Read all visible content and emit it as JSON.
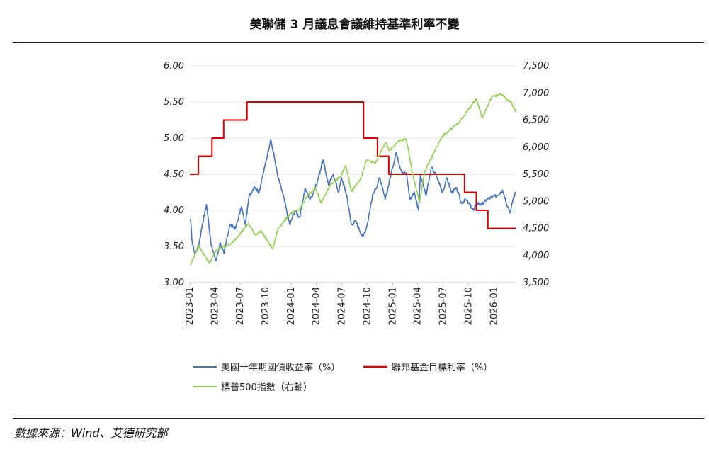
{
  "title": "美聯儲 3 月議息會議維持基準利率不變",
  "source": "數據來源：Wind、艾德研究部",
  "chart_data": {
    "type": "line",
    "xlabel": "",
    "ylabel": "",
    "x_ticks": [
      "2023-01",
      "2023-04",
      "2023-07",
      "2023-10",
      "2024-01",
      "2024-04",
      "2024-07",
      "2024-10",
      "2025-01",
      "2025-04",
      "2025-07",
      "2025-10",
      "2026-01"
    ],
    "x_range": [
      "2023-01-01",
      "2026-03-20"
    ],
    "left_axis": {
      "min": 3.0,
      "max": 6.0,
      "ticks": [
        "3.00",
        "3.50",
        "4.00",
        "4.50",
        "5.00",
        "5.50",
        "6.00"
      ]
    },
    "right_axis": {
      "min": 3500,
      "max": 7500,
      "ticks": [
        "3,500",
        "4,000",
        "4,500",
        "5,000",
        "5,500",
        "6,000",
        "6,500",
        "7,000",
        "7,500"
      ]
    },
    "grid": "horizontal",
    "legend_position": "bottom",
    "series": [
      {
        "name": "美國十年期國債收益率（%）",
        "axis": "left",
        "color": "#4472C4",
        "points": [
          [
            "2023-01-03",
            3.88
          ],
          [
            "2023-01-10",
            3.55
          ],
          [
            "2023-01-19",
            3.4
          ],
          [
            "2023-02-01",
            3.5
          ],
          [
            "2023-02-15",
            3.8
          ],
          [
            "2023-03-02",
            4.08
          ],
          [
            "2023-03-20",
            3.5
          ],
          [
            "2023-04-06",
            3.3
          ],
          [
            "2023-04-20",
            3.55
          ],
          [
            "2023-05-04",
            3.4
          ],
          [
            "2023-05-25",
            3.8
          ],
          [
            "2023-06-15",
            3.75
          ],
          [
            "2023-07-06",
            4.05
          ],
          [
            "2023-07-20",
            3.8
          ],
          [
            "2023-08-03",
            4.2
          ],
          [
            "2023-08-21",
            4.33
          ],
          [
            "2023-09-07",
            4.25
          ],
          [
            "2023-09-28",
            4.6
          ],
          [
            "2023-10-19",
            4.98
          ],
          [
            "2023-11-01",
            4.75
          ],
          [
            "2023-11-15",
            4.45
          ],
          [
            "2023-12-01",
            4.25
          ],
          [
            "2023-12-27",
            3.8
          ],
          [
            "2024-01-15",
            4.0
          ],
          [
            "2024-02-01",
            3.9
          ],
          [
            "2024-02-20",
            4.3
          ],
          [
            "2024-03-10",
            4.15
          ],
          [
            "2024-04-01",
            4.35
          ],
          [
            "2024-04-25",
            4.7
          ],
          [
            "2024-05-15",
            4.35
          ],
          [
            "2024-06-01",
            4.5
          ],
          [
            "2024-06-20",
            4.25
          ],
          [
            "2024-07-01",
            4.45
          ],
          [
            "2024-07-20",
            4.2
          ],
          [
            "2024-08-05",
            3.8
          ],
          [
            "2024-08-20",
            3.85
          ],
          [
            "2024-09-16",
            3.63
          ],
          [
            "2024-10-01",
            3.8
          ],
          [
            "2024-10-20",
            4.2
          ],
          [
            "2024-11-01",
            4.3
          ],
          [
            "2024-11-15",
            4.45
          ],
          [
            "2024-12-05",
            4.15
          ],
          [
            "2025-01-13",
            4.8
          ],
          [
            "2025-02-01",
            4.55
          ],
          [
            "2025-02-20",
            4.5
          ],
          [
            "2025-03-04",
            4.15
          ],
          [
            "2025-03-20",
            4.25
          ],
          [
            "2025-04-04",
            4.0
          ],
          [
            "2025-04-11",
            4.5
          ],
          [
            "2025-05-01",
            4.2
          ],
          [
            "2025-05-21",
            4.6
          ],
          [
            "2025-06-10",
            4.45
          ],
          [
            "2025-06-30",
            4.25
          ],
          [
            "2025-07-15",
            4.45
          ],
          [
            "2025-08-01",
            4.25
          ],
          [
            "2025-08-20",
            4.3
          ],
          [
            "2025-09-05",
            4.1
          ],
          [
            "2025-09-20",
            4.15
          ],
          [
            "2025-10-01",
            4.1
          ],
          [
            "2025-10-20",
            4.0
          ],
          [
            "2025-11-01",
            4.1
          ],
          [
            "2025-11-20",
            4.08
          ],
          [
            "2025-12-05",
            4.15
          ],
          [
            "2025-12-25",
            4.18
          ],
          [
            "2026-01-10",
            4.2
          ],
          [
            "2026-01-25",
            4.25
          ],
          [
            "2026-02-01",
            4.28
          ],
          [
            "2026-02-20",
            4.05
          ],
          [
            "2026-03-01",
            3.97
          ],
          [
            "2026-03-10",
            4.15
          ],
          [
            "2026-03-20",
            4.25
          ]
        ]
      },
      {
        "name": "聯邦基金目標利率（%）",
        "axis": "left",
        "color": "#E00000",
        "step": true,
        "points": [
          [
            "2023-01-01",
            4.5
          ],
          [
            "2023-02-01",
            4.75
          ],
          [
            "2023-03-22",
            5.0
          ],
          [
            "2023-05-03",
            5.25
          ],
          [
            "2023-07-26",
            5.5
          ],
          [
            "2024-09-18",
            5.0
          ],
          [
            "2024-11-07",
            4.75
          ],
          [
            "2024-12-18",
            4.5
          ],
          [
            "2025-09-17",
            4.25
          ],
          [
            "2025-10-29",
            4.0
          ],
          [
            "2025-12-10",
            3.75
          ],
          [
            "2026-03-20",
            3.75
          ]
        ]
      },
      {
        "name": "標普500指數（右軸）",
        "axis": "right",
        "color": "#92D050",
        "points": [
          [
            "2023-01-03",
            3824
          ],
          [
            "2023-02-02",
            4180
          ],
          [
            "2023-03-13",
            3855
          ],
          [
            "2023-04-05",
            4090
          ],
          [
            "2023-05-01",
            4160
          ],
          [
            "2023-06-01",
            4220
          ],
          [
            "2023-07-31",
            4590
          ],
          [
            "2023-08-25",
            4380
          ],
          [
            "2023-09-15",
            4450
          ],
          [
            "2023-10-27",
            4117
          ],
          [
            "2023-11-15",
            4500
          ],
          [
            "2023-12-29",
            4770
          ],
          [
            "2024-01-31",
            4850
          ],
          [
            "2024-02-29",
            5100
          ],
          [
            "2024-03-28",
            5250
          ],
          [
            "2024-04-19",
            4967
          ],
          [
            "2024-05-20",
            5300
          ],
          [
            "2024-06-28",
            5460
          ],
          [
            "2024-07-16",
            5667
          ],
          [
            "2024-08-05",
            5186
          ],
          [
            "2024-09-06",
            5408
          ],
          [
            "2024-09-30",
            5762
          ],
          [
            "2024-10-31",
            5705
          ],
          [
            "2024-12-06",
            6090
          ],
          [
            "2024-12-20",
            5930
          ],
          [
            "2025-01-23",
            6118
          ],
          [
            "2025-02-19",
            6144
          ],
          [
            "2025-03-13",
            5520
          ],
          [
            "2025-04-08",
            4982
          ],
          [
            "2025-04-25",
            5525
          ],
          [
            "2025-05-30",
            5911
          ],
          [
            "2025-06-30",
            6205
          ],
          [
            "2025-07-31",
            6340
          ],
          [
            "2025-08-29",
            6460
          ],
          [
            "2025-09-30",
            6688
          ],
          [
            "2025-10-29",
            6890
          ],
          [
            "2025-11-20",
            6540
          ],
          [
            "2025-12-24",
            6930
          ],
          [
            "2026-01-27",
            6978
          ],
          [
            "2026-02-20",
            6860
          ],
          [
            "2026-03-05",
            6830
          ],
          [
            "2026-03-20",
            6650
          ]
        ]
      }
    ]
  }
}
